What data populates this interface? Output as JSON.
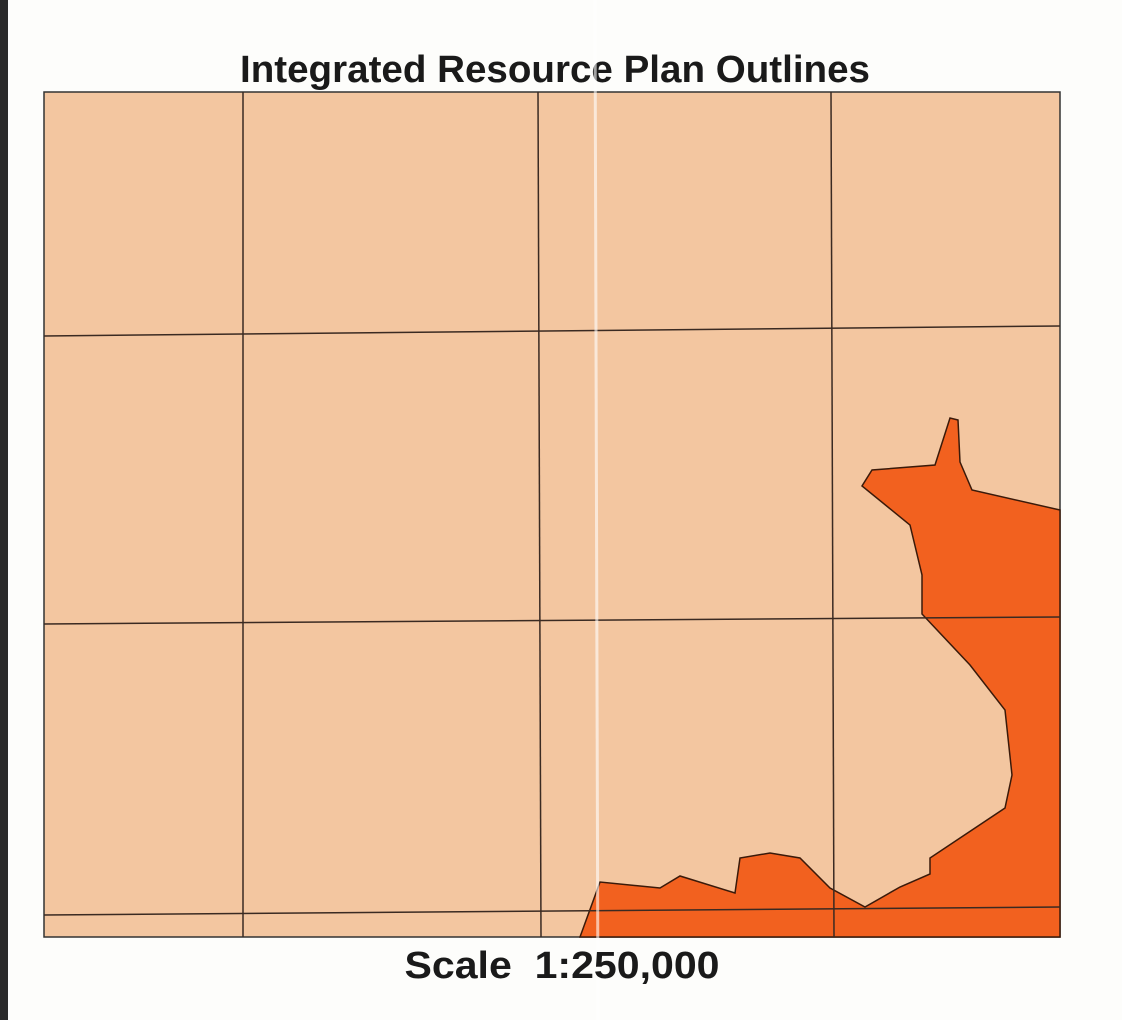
{
  "title": "Integrated Resource Plan Outlines",
  "scale": "Scale  1:250,000"
}
